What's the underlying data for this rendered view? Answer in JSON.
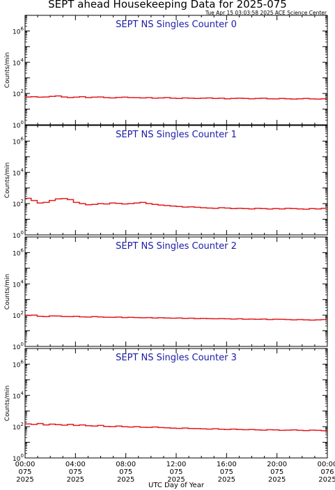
{
  "page": {
    "title": "SEPT ahead Housekeeping Data for 2025-075",
    "subtitle": "Tue Apr 15 03:03:58 2025 ACE Science Center"
  },
  "colors": {
    "series": "#e31a1c",
    "axes": "#000000",
    "panel_title": "#1a1aa6"
  },
  "chart_data": [
    {
      "type": "line",
      "title": "SEPT NS Singles Counter 0",
      "ylabel": "Counts/min",
      "yscale": "log",
      "ylim": [
        1,
        10000000
      ],
      "yticks": [
        {
          "value": 1,
          "base": "10",
          "exp": "0"
        },
        {
          "value": 100,
          "base": "10",
          "exp": "2"
        },
        {
          "value": 10000,
          "base": "10",
          "exp": "4"
        },
        {
          "value": 1000000,
          "base": "10",
          "exp": "6"
        }
      ],
      "xlim": [
        0,
        24
      ],
      "series": [
        {
          "values": [
            60,
            62,
            58,
            60,
            65,
            70,
            60,
            55,
            58,
            62,
            55,
            58,
            60,
            55,
            52,
            56,
            58,
            55,
            54,
            52,
            55,
            50,
            52,
            55,
            50,
            48,
            52,
            50,
            48,
            50,
            52,
            48,
            50,
            46,
            48,
            50,
            48,
            46,
            48,
            50,
            46,
            45,
            48,
            46,
            44,
            46,
            48,
            45,
            44,
            46
          ]
        }
      ]
    },
    {
      "type": "line",
      "title": "SEPT NS Singles Counter 1",
      "ylabel": "Counts/min",
      "yscale": "log",
      "ylim": [
        1,
        10000000
      ],
      "yticks": [
        {
          "value": 1,
          "base": "10",
          "exp": "0"
        },
        {
          "value": 100,
          "base": "10",
          "exp": "2"
        },
        {
          "value": 10000,
          "base": "10",
          "exp": "4"
        },
        {
          "value": 1000000,
          "base": "10",
          "exp": "6"
        }
      ],
      "xlim": [
        0,
        24
      ],
      "series": [
        {
          "values": [
            220,
            160,
            110,
            120,
            160,
            200,
            210,
            180,
            120,
            100,
            85,
            90,
            100,
            95,
            110,
            105,
            95,
            100,
            110,
            120,
            100,
            90,
            80,
            75,
            70,
            65,
            60,
            62,
            58,
            55,
            52,
            50,
            55,
            52,
            48,
            50,
            48,
            46,
            50,
            48,
            45,
            48,
            46,
            50,
            48,
            46,
            44,
            48,
            46,
            50
          ]
        }
      ]
    },
    {
      "type": "line",
      "title": "SEPT NS Singles Counter 2",
      "ylabel": "Counts/min",
      "yscale": "log",
      "ylim": [
        1,
        10000000
      ],
      "yticks": [
        {
          "value": 1,
          "base": "10",
          "exp": "0"
        },
        {
          "value": 100,
          "base": "10",
          "exp": "2"
        },
        {
          "value": 10000,
          "base": "10",
          "exp": "4"
        },
        {
          "value": 1000000,
          "base": "10",
          "exp": "6"
        }
      ],
      "xlim": [
        0,
        24
      ],
      "series": [
        {
          "values": [
            95,
            100,
            85,
            80,
            90,
            88,
            82,
            80,
            85,
            78,
            75,
            80,
            76,
            74,
            72,
            75,
            70,
            72,
            70,
            68,
            70,
            66,
            68,
            65,
            64,
            66,
            62,
            64,
            60,
            62,
            60,
            58,
            60,
            58,
            56,
            58,
            55,
            56,
            54,
            56,
            52,
            55,
            54,
            52,
            50,
            52,
            50,
            48,
            50,
            52
          ]
        }
      ]
    },
    {
      "type": "line",
      "title": "SEPT NS Singles Counter 3",
      "ylabel": "Counts/min",
      "yscale": "log",
      "ylim": [
        1,
        10000000
      ],
      "yticks": [
        {
          "value": 1,
          "base": "10",
          "exp": "0"
        },
        {
          "value": 100,
          "base": "10",
          "exp": "2"
        },
        {
          "value": 10000,
          "base": "10",
          "exp": "4"
        },
        {
          "value": 1000000,
          "base": "10",
          "exp": "6"
        }
      ],
      "xlim": [
        0,
        24
      ],
      "x_ticks": [
        {
          "value": 0,
          "time": "00:00",
          "doy": "075",
          "year": "2025"
        },
        {
          "value": 4,
          "time": "04:00",
          "doy": "075",
          "year": "2025"
        },
        {
          "value": 8,
          "time": "08:00",
          "doy": "075",
          "year": "2025"
        },
        {
          "value": 12,
          "time": "12:00",
          "doy": "075",
          "year": "2025"
        },
        {
          "value": 16,
          "time": "16:00",
          "doy": "075",
          "year": "2025"
        },
        {
          "value": 20,
          "time": "20:00",
          "doy": "075",
          "year": "2025"
        },
        {
          "value": 24,
          "time": "00:00",
          "doy": "076",
          "year": "2025"
        }
      ],
      "xlabel": "UTC Day of Year",
      "series": [
        {
          "values": [
            150,
            140,
            160,
            130,
            145,
            135,
            125,
            140,
            120,
            130,
            115,
            110,
            120,
            105,
            100,
            110,
            98,
            95,
            100,
            92,
            90,
            95,
            88,
            85,
            80,
            78,
            82,
            76,
            75,
            72,
            70,
            74,
            68,
            66,
            70,
            65,
            64,
            66,
            62,
            60,
            64,
            62,
            58,
            60,
            62,
            58,
            56,
            60,
            58,
            55
          ]
        }
      ]
    }
  ]
}
